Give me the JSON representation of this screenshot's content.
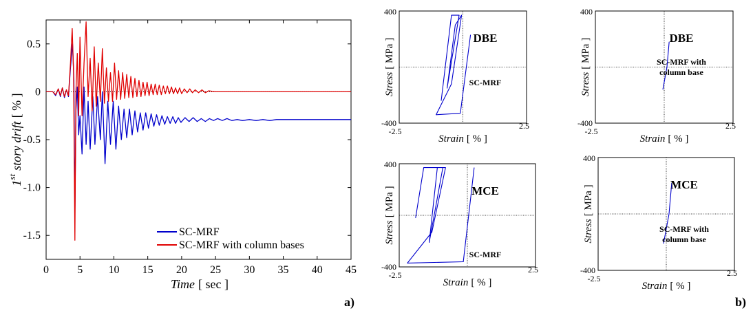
{
  "colors": {
    "blue": "#0000CC",
    "red": "#E00000",
    "axis": "#000000"
  },
  "panel_labels": {
    "a": "a)",
    "b": "b)"
  },
  "chart_data": [
    {
      "type": "line",
      "xlabel_italic": "Time",
      "xlabel_unit": "[ sec ]",
      "ylabel_italic": "story drift",
      "ylabel_prefix": "1",
      "ylabel_sup": "st",
      "ylabel_unit": "[ % ]",
      "xlim": [
        0,
        45
      ],
      "ylim": [
        -1.75,
        0.75
      ],
      "xticks": [
        0,
        5,
        10,
        15,
        20,
        25,
        30,
        35,
        40,
        45
      ],
      "yticks": [
        0.5,
        0,
        -0.5,
        -1.0,
        -1.5
      ],
      "ytick_labels": [
        "0.5",
        "0",
        "-0.5",
        "-1.0",
        "-1.5"
      ],
      "legend_position": "bottom-right",
      "series": [
        {
          "name": "SC-MRF",
          "color": "#0000CC",
          "points": [
            [
              0,
              0
            ],
            [
              1.0,
              0.0
            ],
            [
              1.4,
              -0.04
            ],
            [
              1.8,
              0.03
            ],
            [
              2.1,
              -0.05
            ],
            [
              2.4,
              0.04
            ],
            [
              2.7,
              -0.06
            ],
            [
              3.0,
              0.02
            ],
            [
              3.3,
              -0.05
            ],
            [
              3.6,
              0.25
            ],
            [
              3.9,
              0.5
            ],
            [
              4.1,
              0.12
            ],
            [
              4.25,
              -1.28
            ],
            [
              4.4,
              -0.2
            ],
            [
              4.6,
              0.05
            ],
            [
              4.8,
              -0.45
            ],
            [
              5.0,
              -0.25
            ],
            [
              5.3,
              -0.65
            ],
            [
              5.6,
              0.05
            ],
            [
              5.9,
              -0.55
            ],
            [
              6.2,
              -0.1
            ],
            [
              6.5,
              -0.6
            ],
            [
              6.9,
              -0.05
            ],
            [
              7.2,
              -0.55
            ],
            [
              7.6,
              -0.05
            ],
            [
              8.0,
              -0.5
            ],
            [
              8.3,
              0.0
            ],
            [
              8.7,
              -0.75
            ],
            [
              9.1,
              -0.1
            ],
            [
              9.5,
              -0.55
            ],
            [
              9.9,
              -0.1
            ],
            [
              10.3,
              -0.6
            ],
            [
              10.7,
              -0.15
            ],
            [
              11.1,
              -0.5
            ],
            [
              11.5,
              -0.18
            ],
            [
              11.9,
              -0.48
            ],
            [
              12.3,
              -0.18
            ],
            [
              12.7,
              -0.45
            ],
            [
              13.1,
              -0.2
            ],
            [
              13.5,
              -0.42
            ],
            [
              13.9,
              -0.22
            ],
            [
              14.3,
              -0.4
            ],
            [
              14.7,
              -0.22
            ],
            [
              15.1,
              -0.38
            ],
            [
              15.5,
              -0.23
            ],
            [
              15.9,
              -0.36
            ],
            [
              16.3,
              -0.24
            ],
            [
              16.7,
              -0.35
            ],
            [
              17.1,
              -0.25
            ],
            [
              17.5,
              -0.34
            ],
            [
              17.9,
              -0.26
            ],
            [
              18.3,
              -0.33
            ],
            [
              18.7,
              -0.26
            ],
            [
              19.1,
              -0.33
            ],
            [
              19.5,
              -0.27
            ],
            [
              19.9,
              -0.32
            ],
            [
              20.5,
              -0.27
            ],
            [
              21.1,
              -0.31
            ],
            [
              21.7,
              -0.27
            ],
            [
              22.3,
              -0.31
            ],
            [
              22.9,
              -0.28
            ],
            [
              23.5,
              -0.31
            ],
            [
              24.1,
              -0.28
            ],
            [
              24.7,
              -0.3
            ],
            [
              25.3,
              -0.28
            ],
            [
              26.0,
              -0.3
            ],
            [
              26.7,
              -0.28
            ],
            [
              27.4,
              -0.3
            ],
            [
              28.2,
              -0.29
            ],
            [
              29.0,
              -0.3
            ],
            [
              30.0,
              -0.29
            ],
            [
              31.0,
              -0.3
            ],
            [
              32.0,
              -0.29
            ],
            [
              33.0,
              -0.3
            ],
            [
              34.0,
              -0.29
            ],
            [
              35.0,
              -0.29
            ],
            [
              40.0,
              -0.29
            ],
            [
              45.0,
              -0.29
            ]
          ]
        },
        {
          "name": "SC-MRF with column bases",
          "color": "#E00000",
          "points": [
            [
              0,
              0
            ],
            [
              1.0,
              0.0
            ],
            [
              1.4,
              -0.03
            ],
            [
              1.8,
              0.03
            ],
            [
              2.1,
              -0.04
            ],
            [
              2.4,
              0.04
            ],
            [
              2.7,
              -0.05
            ],
            [
              3.0,
              0.02
            ],
            [
              3.3,
              -0.04
            ],
            [
              3.6,
              0.3
            ],
            [
              3.85,
              0.66
            ],
            [
              4.05,
              0.2
            ],
            [
              4.25,
              -1.55
            ],
            [
              4.4,
              0.0
            ],
            [
              4.6,
              0.4
            ],
            [
              4.8,
              -0.25
            ],
            [
              5.0,
              0.57
            ],
            [
              5.3,
              -0.25
            ],
            [
              5.6,
              0.3
            ],
            [
              5.9,
              0.73
            ],
            [
              6.2,
              -0.05
            ],
            [
              6.5,
              0.35
            ],
            [
              6.8,
              -0.2
            ],
            [
              7.1,
              0.47
            ],
            [
              7.4,
              -0.15
            ],
            [
              7.7,
              0.3
            ],
            [
              8.0,
              -0.1
            ],
            [
              8.3,
              0.45
            ],
            [
              8.6,
              -0.12
            ],
            [
              8.9,
              0.25
            ],
            [
              9.2,
              -0.1
            ],
            [
              9.5,
              0.2
            ],
            [
              9.8,
              -0.1
            ],
            [
              10.1,
              0.3
            ],
            [
              10.4,
              -0.08
            ],
            [
              10.7,
              0.22
            ],
            [
              11.0,
              -0.08
            ],
            [
              11.3,
              0.2
            ],
            [
              11.6,
              -0.07
            ],
            [
              11.9,
              0.18
            ],
            [
              12.2,
              -0.06
            ],
            [
              12.5,
              0.16
            ],
            [
              12.8,
              -0.06
            ],
            [
              13.1,
              0.14
            ],
            [
              13.4,
              -0.05
            ],
            [
              13.7,
              0.12
            ],
            [
              14.0,
              -0.05
            ],
            [
              14.3,
              0.1
            ],
            [
              14.6,
              -0.04
            ],
            [
              14.9,
              0.1
            ],
            [
              15.2,
              -0.04
            ],
            [
              15.5,
              0.08
            ],
            [
              15.8,
              -0.03
            ],
            [
              16.1,
              0.08
            ],
            [
              16.4,
              -0.03
            ],
            [
              16.7,
              0.07
            ],
            [
              17.0,
              -0.03
            ],
            [
              17.3,
              0.06
            ],
            [
              17.6,
              -0.02
            ],
            [
              17.9,
              0.06
            ],
            [
              18.2,
              -0.02
            ],
            [
              18.5,
              0.05
            ],
            [
              18.8,
              -0.02
            ],
            [
              19.1,
              0.04
            ],
            [
              19.4,
              -0.02
            ],
            [
              19.7,
              0.04
            ],
            [
              20.0,
              -0.02
            ],
            [
              20.4,
              0.03
            ],
            [
              20.8,
              -0.01
            ],
            [
              21.2,
              0.03
            ],
            [
              21.6,
              -0.01
            ],
            [
              22.0,
              0.02
            ],
            [
              22.5,
              -0.01
            ],
            [
              23.0,
              0.02
            ],
            [
              23.5,
              -0.01
            ],
            [
              24.0,
              0.01
            ],
            [
              25.0,
              0.0
            ],
            [
              45.0,
              0.0
            ]
          ]
        }
      ]
    },
    {
      "type": "line",
      "subplot": "top-left",
      "level": "DBE",
      "system": "SC-MRF",
      "xlabel_italic": "Strain",
      "xlabel_unit": "[ % ]",
      "ylabel_italic": "Stress",
      "ylabel_unit": "[ MPa ]",
      "xlim": [
        -2.5,
        2.5
      ],
      "ylim": [
        -400,
        400
      ],
      "xtick_labels": [
        "-2.5",
        "2.5"
      ],
      "ytick_labels": [
        "400",
        "-400"
      ],
      "series": [
        {
          "color": "#0000CC",
          "points": [
            [
              -0.85,
              -240
            ],
            [
              -0.45,
              370
            ],
            [
              -0.15,
              370
            ],
            [
              -0.62,
              -150
            ],
            [
              -0.3,
              300
            ],
            [
              -0.05,
              370
            ],
            [
              -0.45,
              -120
            ],
            [
              -1.05,
              -340
            ],
            [
              -0.1,
              -330
            ],
            [
              0.3,
              230
            ]
          ]
        }
      ]
    },
    {
      "type": "line",
      "subplot": "top-right",
      "level": "DBE",
      "system": "SC-MRF with column base",
      "xlabel_italic": "Strain",
      "xlabel_unit": "[ % ]",
      "ylabel_italic": "Stress",
      "ylabel_unit": "[ MPa ]",
      "xlim": [
        -2.5,
        2.5
      ],
      "ylim": [
        -400,
        400
      ],
      "xtick_labels": [
        "-2.5",
        "2.5"
      ],
      "ytick_labels": [
        "400",
        "-400"
      ],
      "series": [
        {
          "color": "#0000CC",
          "points": [
            [
              -0.05,
              -160
            ],
            [
              0.1,
              0
            ],
            [
              0.18,
              180
            ]
          ]
        }
      ]
    },
    {
      "type": "line",
      "subplot": "bottom-left",
      "level": "MCE",
      "system": "SC-MRF",
      "xlabel_italic": "Strain",
      "xlabel_unit": "[ % ]",
      "ylabel_italic": "Stress",
      "ylabel_unit": "[ MPa ]",
      "xlim": [
        -2.5,
        2.5
      ],
      "ylim": [
        -400,
        400
      ],
      "xtick_labels": [
        "-2.5",
        "2.5"
      ],
      "ytick_labels": [
        "400",
        "-400"
      ],
      "series": [
        {
          "color": "#0000CC",
          "points": [
            [
              -1.9,
              -20
            ],
            [
              -1.6,
              370
            ],
            [
              -0.9,
              370
            ],
            [
              -1.4,
              -210
            ],
            [
              -1.1,
              370
            ],
            [
              -0.8,
              370
            ],
            [
              -1.3,
              -130
            ],
            [
              -2.2,
              -370
            ],
            [
              -0.15,
              -360
            ],
            [
              0.25,
              370
            ]
          ]
        }
      ]
    },
    {
      "type": "line",
      "subplot": "bottom-right",
      "level": "MCE",
      "system": "SC-MRF with column base",
      "xlabel_italic": "Strain",
      "xlabel_unit": "[ % ]",
      "ylabel_italic": "Stress",
      "ylabel_unit": "[ MPa ]",
      "xlim": [
        -2.5,
        2.5
      ],
      "ylim": [
        -400,
        400
      ],
      "xtick_labels": [
        "-2.5",
        "2.5"
      ],
      "ytick_labels": [
        "400",
        "-400"
      ],
      "series": [
        {
          "color": "#0000CC",
          "points": [
            [
              -0.1,
              -210
            ],
            [
              0.1,
              0
            ],
            [
              0.2,
              220
            ]
          ]
        }
      ]
    }
  ]
}
